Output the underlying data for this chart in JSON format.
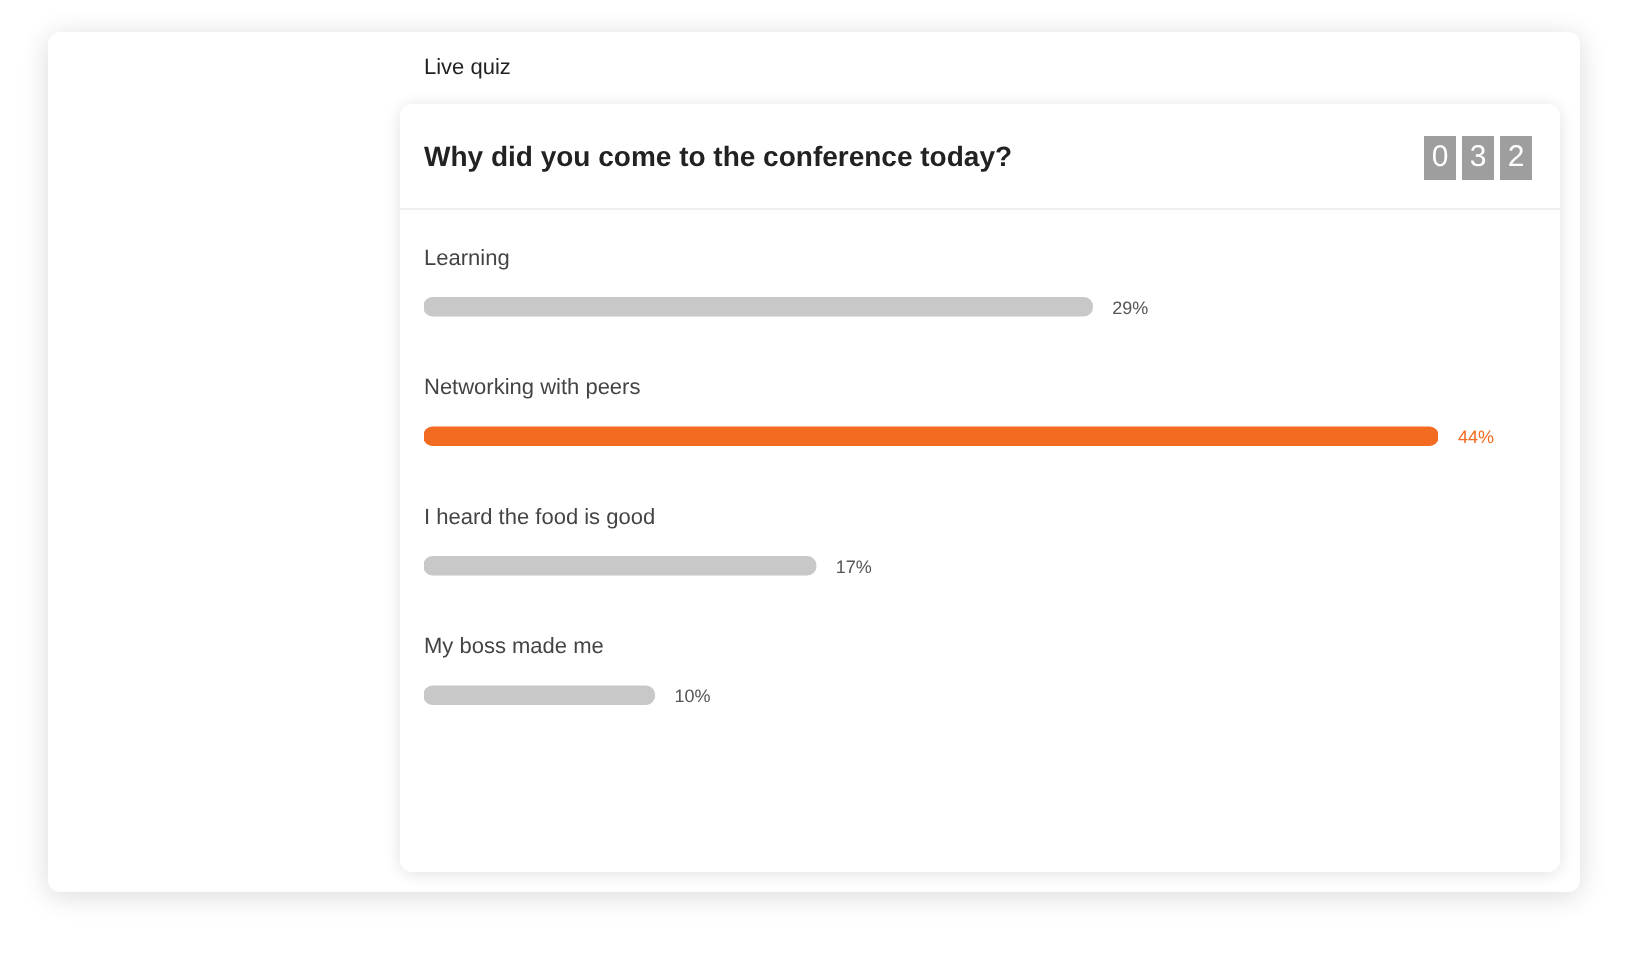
{
  "chart_data": {
    "type": "bar",
    "orientation": "horizontal",
    "subtitle": "Live quiz",
    "title": "Why did you come to the conference today?",
    "categories": [
      "Learning",
      "Networking with peers",
      "I heard the food is good",
      "My boss made me"
    ],
    "values": [
      29,
      44,
      17,
      10
    ],
    "value_labels": [
      "29%",
      "44%",
      "17%",
      "10%"
    ],
    "colors": [
      "#c8c8c8",
      "#f26b21",
      "#c8c8c8",
      "#c8c8c8"
    ],
    "annotations": [
      "0 3 2"
    ],
    "tick_labels": false,
    "grid": false,
    "legend": false
  }
}
